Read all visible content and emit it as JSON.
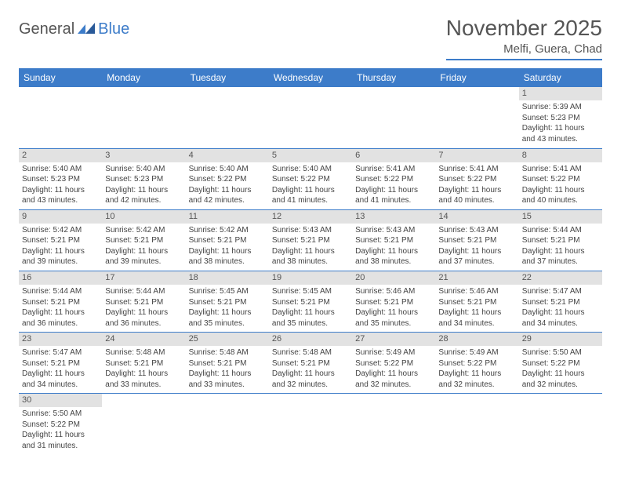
{
  "logo": {
    "general": "General",
    "blue": "Blue"
  },
  "title": "November 2025",
  "location": "Melfi, Guera, Chad",
  "colors": {
    "accent": "#3d7cc9",
    "daynum_bg": "#e2e2e2",
    "text": "#333333",
    "header_text": "#ffffff"
  },
  "day_headers": [
    "Sunday",
    "Monday",
    "Tuesday",
    "Wednesday",
    "Thursday",
    "Friday",
    "Saturday"
  ],
  "weeks": [
    [
      null,
      null,
      null,
      null,
      null,
      null,
      {
        "n": "1",
        "sunrise": "Sunrise: 5:39 AM",
        "sunset": "Sunset: 5:23 PM",
        "daylight": "Daylight: 11 hours and 43 minutes."
      }
    ],
    [
      {
        "n": "2",
        "sunrise": "Sunrise: 5:40 AM",
        "sunset": "Sunset: 5:23 PM",
        "daylight": "Daylight: 11 hours and 43 minutes."
      },
      {
        "n": "3",
        "sunrise": "Sunrise: 5:40 AM",
        "sunset": "Sunset: 5:23 PM",
        "daylight": "Daylight: 11 hours and 42 minutes."
      },
      {
        "n": "4",
        "sunrise": "Sunrise: 5:40 AM",
        "sunset": "Sunset: 5:22 PM",
        "daylight": "Daylight: 11 hours and 42 minutes."
      },
      {
        "n": "5",
        "sunrise": "Sunrise: 5:40 AM",
        "sunset": "Sunset: 5:22 PM",
        "daylight": "Daylight: 11 hours and 41 minutes."
      },
      {
        "n": "6",
        "sunrise": "Sunrise: 5:41 AM",
        "sunset": "Sunset: 5:22 PM",
        "daylight": "Daylight: 11 hours and 41 minutes."
      },
      {
        "n": "7",
        "sunrise": "Sunrise: 5:41 AM",
        "sunset": "Sunset: 5:22 PM",
        "daylight": "Daylight: 11 hours and 40 minutes."
      },
      {
        "n": "8",
        "sunrise": "Sunrise: 5:41 AM",
        "sunset": "Sunset: 5:22 PM",
        "daylight": "Daylight: 11 hours and 40 minutes."
      }
    ],
    [
      {
        "n": "9",
        "sunrise": "Sunrise: 5:42 AM",
        "sunset": "Sunset: 5:21 PM",
        "daylight": "Daylight: 11 hours and 39 minutes."
      },
      {
        "n": "10",
        "sunrise": "Sunrise: 5:42 AM",
        "sunset": "Sunset: 5:21 PM",
        "daylight": "Daylight: 11 hours and 39 minutes."
      },
      {
        "n": "11",
        "sunrise": "Sunrise: 5:42 AM",
        "sunset": "Sunset: 5:21 PM",
        "daylight": "Daylight: 11 hours and 38 minutes."
      },
      {
        "n": "12",
        "sunrise": "Sunrise: 5:43 AM",
        "sunset": "Sunset: 5:21 PM",
        "daylight": "Daylight: 11 hours and 38 minutes."
      },
      {
        "n": "13",
        "sunrise": "Sunrise: 5:43 AM",
        "sunset": "Sunset: 5:21 PM",
        "daylight": "Daylight: 11 hours and 38 minutes."
      },
      {
        "n": "14",
        "sunrise": "Sunrise: 5:43 AM",
        "sunset": "Sunset: 5:21 PM",
        "daylight": "Daylight: 11 hours and 37 minutes."
      },
      {
        "n": "15",
        "sunrise": "Sunrise: 5:44 AM",
        "sunset": "Sunset: 5:21 PM",
        "daylight": "Daylight: 11 hours and 37 minutes."
      }
    ],
    [
      {
        "n": "16",
        "sunrise": "Sunrise: 5:44 AM",
        "sunset": "Sunset: 5:21 PM",
        "daylight": "Daylight: 11 hours and 36 minutes."
      },
      {
        "n": "17",
        "sunrise": "Sunrise: 5:44 AM",
        "sunset": "Sunset: 5:21 PM",
        "daylight": "Daylight: 11 hours and 36 minutes."
      },
      {
        "n": "18",
        "sunrise": "Sunrise: 5:45 AM",
        "sunset": "Sunset: 5:21 PM",
        "daylight": "Daylight: 11 hours and 35 minutes."
      },
      {
        "n": "19",
        "sunrise": "Sunrise: 5:45 AM",
        "sunset": "Sunset: 5:21 PM",
        "daylight": "Daylight: 11 hours and 35 minutes."
      },
      {
        "n": "20",
        "sunrise": "Sunrise: 5:46 AM",
        "sunset": "Sunset: 5:21 PM",
        "daylight": "Daylight: 11 hours and 35 minutes."
      },
      {
        "n": "21",
        "sunrise": "Sunrise: 5:46 AM",
        "sunset": "Sunset: 5:21 PM",
        "daylight": "Daylight: 11 hours and 34 minutes."
      },
      {
        "n": "22",
        "sunrise": "Sunrise: 5:47 AM",
        "sunset": "Sunset: 5:21 PM",
        "daylight": "Daylight: 11 hours and 34 minutes."
      }
    ],
    [
      {
        "n": "23",
        "sunrise": "Sunrise: 5:47 AM",
        "sunset": "Sunset: 5:21 PM",
        "daylight": "Daylight: 11 hours and 34 minutes."
      },
      {
        "n": "24",
        "sunrise": "Sunrise: 5:48 AM",
        "sunset": "Sunset: 5:21 PM",
        "daylight": "Daylight: 11 hours and 33 minutes."
      },
      {
        "n": "25",
        "sunrise": "Sunrise: 5:48 AM",
        "sunset": "Sunset: 5:21 PM",
        "daylight": "Daylight: 11 hours and 33 minutes."
      },
      {
        "n": "26",
        "sunrise": "Sunrise: 5:48 AM",
        "sunset": "Sunset: 5:21 PM",
        "daylight": "Daylight: 11 hours and 32 minutes."
      },
      {
        "n": "27",
        "sunrise": "Sunrise: 5:49 AM",
        "sunset": "Sunset: 5:22 PM",
        "daylight": "Daylight: 11 hours and 32 minutes."
      },
      {
        "n": "28",
        "sunrise": "Sunrise: 5:49 AM",
        "sunset": "Sunset: 5:22 PM",
        "daylight": "Daylight: 11 hours and 32 minutes."
      },
      {
        "n": "29",
        "sunrise": "Sunrise: 5:50 AM",
        "sunset": "Sunset: 5:22 PM",
        "daylight": "Daylight: 11 hours and 32 minutes."
      }
    ],
    [
      {
        "n": "30",
        "sunrise": "Sunrise: 5:50 AM",
        "sunset": "Sunset: 5:22 PM",
        "daylight": "Daylight: 11 hours and 31 minutes."
      },
      null,
      null,
      null,
      null,
      null,
      null
    ]
  ]
}
